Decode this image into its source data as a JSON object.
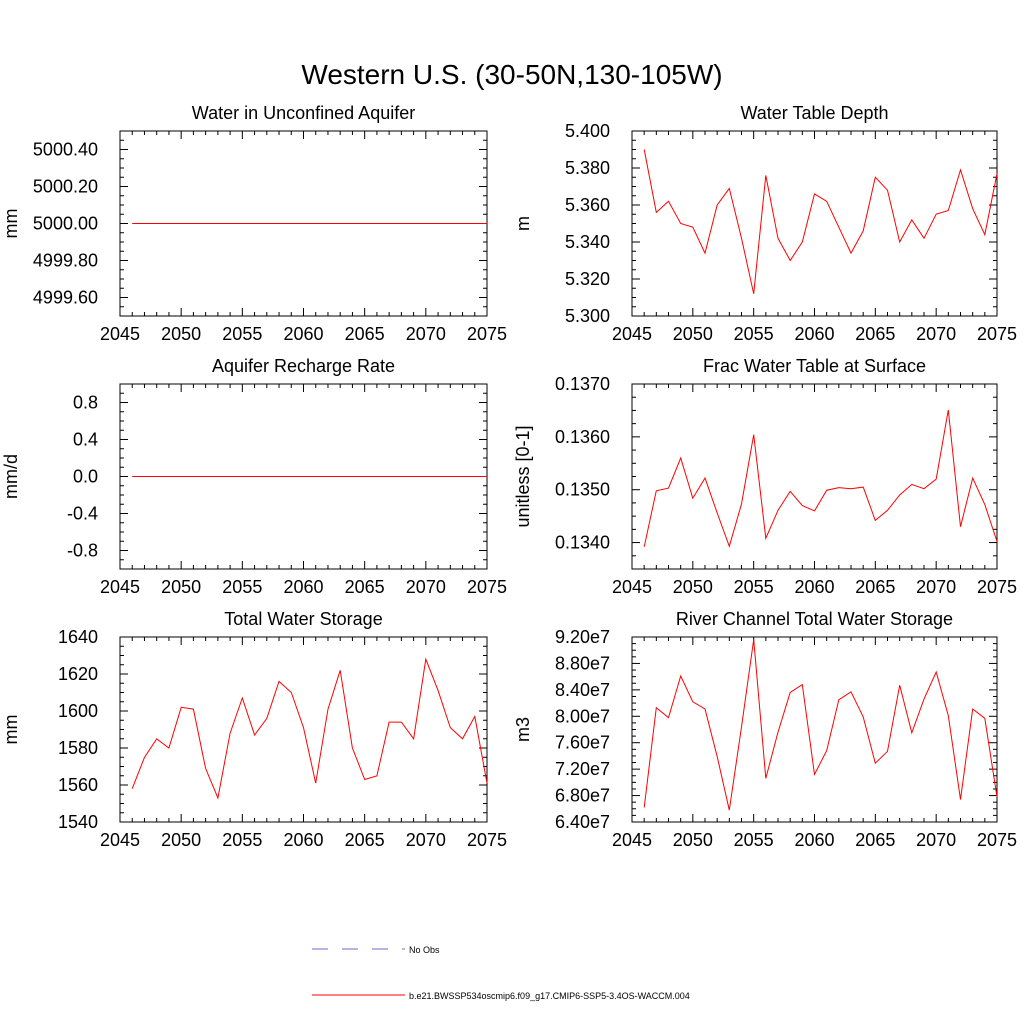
{
  "main_title": "Western U.S. (30-50N,130-105W)",
  "colors": {
    "model": "#ff0000",
    "obs": "#6a6acd",
    "axis": "#000000"
  },
  "legend": {
    "items": [
      {
        "label": "No Obs",
        "style": "dashed",
        "color": "#6a6acd"
      },
      {
        "label": "b.e21.BWSSP534oscmip6.f09_g17.CMIP6-SSP5-3.4OS-WACCM.004",
        "style": "solid",
        "color": "#ff0000"
      }
    ]
  },
  "chart_data": [
    {
      "type": "line",
      "title": "Water in Unconfined Aquifer",
      "xlabel": "",
      "ylabel": "mm",
      "xlim": [
        2045,
        2075
      ],
      "ylim": [
        4999.5,
        5000.5
      ],
      "xticks": [
        2045,
        2050,
        2055,
        2060,
        2065,
        2070,
        2075
      ],
      "xtick_labels": [
        "2045",
        "2050",
        "2055",
        "2060",
        "2065",
        "2070",
        "2075"
      ],
      "yticks": [
        4999.6,
        4999.8,
        5000.0,
        5000.2,
        5000.4
      ],
      "ytick_labels": [
        "4999.60",
        "4999.80",
        "5000.00",
        "5000.20",
        "5000.40"
      ],
      "x": [
        2046,
        2075
      ],
      "series": [
        {
          "values": [
            5000.0,
            5000.0
          ]
        }
      ]
    },
    {
      "type": "line",
      "title": "Water Table Depth",
      "xlabel": "",
      "ylabel": "m",
      "xlim": [
        2045,
        2075
      ],
      "ylim": [
        5.3,
        5.4
      ],
      "xticks": [
        2045,
        2050,
        2055,
        2060,
        2065,
        2070,
        2075
      ],
      "xtick_labels": [
        "2045",
        "2050",
        "2055",
        "2060",
        "2065",
        "2070",
        "2075"
      ],
      "yticks": [
        5.3,
        5.32,
        5.34,
        5.36,
        5.38,
        5.4
      ],
      "ytick_labels": [
        "5.300",
        "5.320",
        "5.340",
        "5.360",
        "5.380",
        "5.400"
      ],
      "x": [
        2046,
        2047,
        2048,
        2049,
        2050,
        2051,
        2052,
        2053,
        2054,
        2055,
        2056,
        2057,
        2058,
        2059,
        2060,
        2061,
        2062,
        2063,
        2064,
        2065,
        2066,
        2067,
        2068,
        2069,
        2070,
        2071,
        2072,
        2073,
        2074,
        2075
      ],
      "series": [
        {
          "values": [
            5.39,
            5.356,
            5.362,
            5.35,
            5.348,
            5.334,
            5.36,
            5.369,
            5.342,
            5.312,
            5.376,
            5.342,
            5.33,
            5.34,
            5.366,
            5.362,
            5.348,
            5.334,
            5.346,
            5.375,
            5.368,
            5.34,
            5.352,
            5.342,
            5.355,
            5.357,
            5.379,
            5.358,
            5.344,
            5.377
          ]
        }
      ]
    },
    {
      "type": "line",
      "title": "Aquifer Recharge Rate",
      "xlabel": "",
      "ylabel": "mm/d",
      "xlim": [
        2045,
        2075
      ],
      "ylim": [
        -1.0,
        1.0
      ],
      "xticks": [
        2045,
        2050,
        2055,
        2060,
        2065,
        2070,
        2075
      ],
      "xtick_labels": [
        "2045",
        "2050",
        "2055",
        "2060",
        "2065",
        "2070",
        "2075"
      ],
      "yticks": [
        -0.8,
        -0.4,
        0.0,
        0.4,
        0.8
      ],
      "ytick_labels": [
        "-0.8",
        "-0.4",
        "0.0",
        "0.4",
        "0.8"
      ],
      "x": [
        2046,
        2075
      ],
      "series": [
        {
          "values": [
            0.0,
            0.0
          ]
        }
      ]
    },
    {
      "type": "line",
      "title": "Frac Water Table at Surface",
      "xlabel": "",
      "ylabel": "unitless [0-1]",
      "xlim": [
        2045,
        2075
      ],
      "ylim": [
        0.1335,
        0.137
      ],
      "xticks": [
        2045,
        2050,
        2055,
        2060,
        2065,
        2070,
        2075
      ],
      "xtick_labels": [
        "2045",
        "2050",
        "2055",
        "2060",
        "2065",
        "2070",
        "2075"
      ],
      "yticks": [
        0.134,
        0.135,
        0.136,
        0.137
      ],
      "ytick_labels": [
        "0.1340",
        "0.1350",
        "0.1360",
        "0.1370"
      ],
      "x": [
        2046,
        2047,
        2048,
        2049,
        2050,
        2051,
        2052,
        2053,
        2054,
        2055,
        2056,
        2057,
        2058,
        2059,
        2060,
        2061,
        2062,
        2063,
        2064,
        2065,
        2066,
        2067,
        2068,
        2069,
        2070,
        2071,
        2072,
        2073,
        2074,
        2075
      ],
      "series": [
        {
          "values": [
            0.13392,
            0.13498,
            0.13503,
            0.1356,
            0.13484,
            0.13522,
            0.13456,
            0.13393,
            0.13473,
            0.13604,
            0.13408,
            0.13461,
            0.13497,
            0.1347,
            0.1346,
            0.13499,
            0.13504,
            0.13502,
            0.13505,
            0.13442,
            0.13461,
            0.1349,
            0.1351,
            0.13502,
            0.1352,
            0.13651,
            0.1343,
            0.13522,
            0.13472,
            0.13402
          ]
        }
      ]
    },
    {
      "type": "line",
      "title": "Total Water Storage",
      "xlabel": "",
      "ylabel": "mm",
      "xlim": [
        2045,
        2075
      ],
      "ylim": [
        1540,
        1640
      ],
      "xticks": [
        2045,
        2050,
        2055,
        2060,
        2065,
        2070,
        2075
      ],
      "xtick_labels": [
        "2045",
        "2050",
        "2055",
        "2060",
        "2065",
        "2070",
        "2075"
      ],
      "yticks": [
        1540,
        1560,
        1580,
        1600,
        1620,
        1640
      ],
      "ytick_labels": [
        "1540",
        "1560",
        "1580",
        "1600",
        "1620",
        "1640"
      ],
      "x": [
        2046,
        2047,
        2048,
        2049,
        2050,
        2051,
        2052,
        2053,
        2054,
        2055,
        2056,
        2057,
        2058,
        2059,
        2060,
        2061,
        2062,
        2063,
        2064,
        2065,
        2066,
        2067,
        2068,
        2069,
        2070,
        2071,
        2072,
        2073,
        2074,
        2075
      ],
      "series": [
        {
          "values": [
            1558,
            1575,
            1585,
            1580,
            1602,
            1601,
            1569,
            1553,
            1588,
            1607,
            1587,
            1596,
            1616,
            1610,
            1591,
            1561,
            1601,
            1622,
            1580,
            1563,
            1565,
            1594,
            1594,
            1585,
            1628,
            1611,
            1591,
            1585,
            1597,
            1561
          ]
        }
      ]
    },
    {
      "type": "line",
      "title": "River Channel Total Water Storage",
      "xlabel": "",
      "ylabel": "m3",
      "xlim": [
        2045,
        2075
      ],
      "ylim": [
        64000000,
        92000000
      ],
      "xticks": [
        2045,
        2050,
        2055,
        2060,
        2065,
        2070,
        2075
      ],
      "xtick_labels": [
        "2045",
        "2050",
        "2055",
        "2060",
        "2065",
        "2070",
        "2075"
      ],
      "yticks": [
        64000000,
        68000000,
        72000000,
        76000000,
        80000000,
        84000000,
        88000000,
        92000000
      ],
      "ytick_labels": [
        "6.40e7",
        "6.80e7",
        "7.20e7",
        "7.60e7",
        "8.00e7",
        "8.40e7",
        "8.80e7",
        "9.20e7"
      ],
      "x": [
        2046,
        2047,
        2048,
        2049,
        2050,
        2051,
        2052,
        2053,
        2054,
        2055,
        2056,
        2057,
        2058,
        2059,
        2060,
        2061,
        2062,
        2063,
        2064,
        2065,
        2066,
        2067,
        2068,
        2069,
        2070,
        2071,
        2072,
        2073,
        2074,
        2075
      ],
      "series": [
        {
          "values": [
            66200000,
            81300000,
            79800000,
            86100000,
            82200000,
            81100000,
            73900000,
            65800000,
            78400000,
            91600000,
            70600000,
            77600000,
            83600000,
            84800000,
            71200000,
            74800000,
            82500000,
            83700000,
            79900000,
            72900000,
            74700000,
            84700000,
            77500000,
            82600000,
            86700000,
            80100000,
            67400000,
            81100000,
            79700000,
            67800000
          ]
        }
      ]
    }
  ]
}
